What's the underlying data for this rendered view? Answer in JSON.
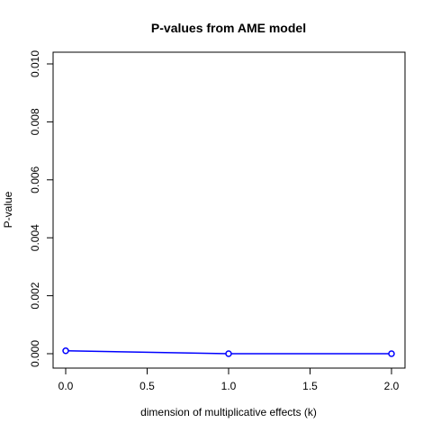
{
  "chart_data": {
    "type": "line",
    "title": "P-values from AME model",
    "xlabel": "dimension of multiplicative effects (k)",
    "ylabel": "P-value",
    "xlim": [
      0,
      2
    ],
    "ylim": [
      0,
      0.01
    ],
    "x_ticks": [
      0.0,
      0.5,
      1.0,
      1.5,
      2.0
    ],
    "x_tick_labels": [
      "0.0",
      "0.5",
      "1.0",
      "1.5",
      "2.0"
    ],
    "y_ticks": [
      0.0,
      0.002,
      0.004,
      0.006,
      0.008,
      0.01
    ],
    "y_tick_labels": [
      "0.000",
      "0.002",
      "0.004",
      "0.006",
      "0.008",
      "0.010"
    ],
    "grid": false,
    "series": [
      {
        "x": [
          0,
          1,
          2
        ],
        "values": [
          0.0001,
          0.0,
          0.0
        ],
        "color": "#0000ff",
        "marker": "open-circle"
      }
    ]
  }
}
